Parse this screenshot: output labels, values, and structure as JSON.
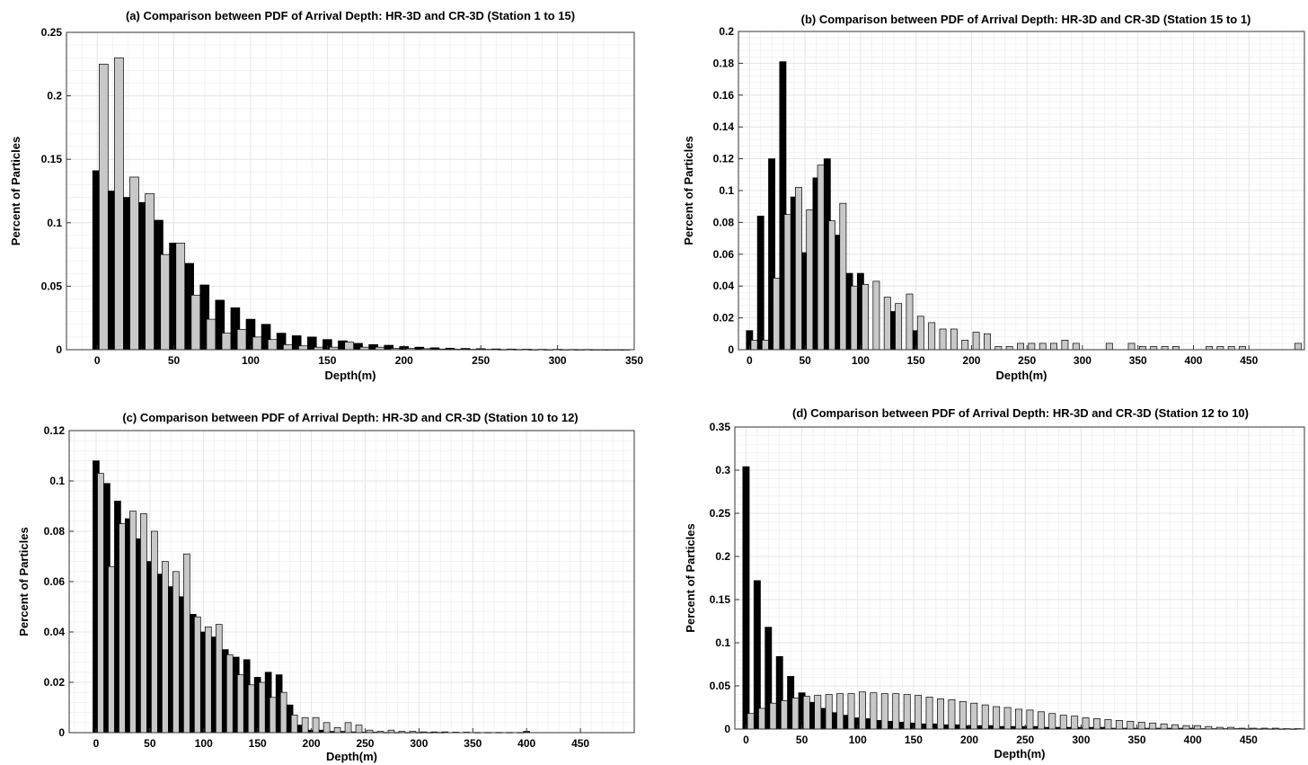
{
  "colors": {
    "hr": "#000000",
    "cr": "#c8c8c8",
    "grid": "#e6e6e6",
    "frame": "#333333"
  },
  "chart_data": [
    {
      "type": "bar",
      "title": "(a) Comparison between PDF of Arrival Depth: HR-3D and CR-3D (Station 1 to 15)",
      "xlabel": "Depth(m)",
      "ylabel": "Percent of Particles",
      "xlim": [
        -20,
        350
      ],
      "ylim": [
        0,
        0.25
      ],
      "xticks": [
        0,
        50,
        100,
        150,
        200,
        250,
        300,
        350
      ],
      "yticks": [
        0,
        0.05,
        0.1,
        0.15,
        0.2,
        0.25
      ],
      "xtick_labels": [
        "0",
        "50",
        "100",
        "150",
        "200",
        "250",
        "300",
        "350"
      ],
      "ytick_labels": [
        "0",
        "0.05",
        "0.1",
        "0.15",
        "0.2",
        "0.25"
      ],
      "grid": true,
      "bin_width": 10,
      "x": [
        0,
        10,
        20,
        30,
        40,
        50,
        60,
        70,
        80,
        90,
        100,
        110,
        120,
        130,
        140,
        150,
        160,
        170,
        180,
        190,
        200,
        210,
        220,
        230,
        240,
        250,
        260,
        270,
        280,
        290,
        300,
        310,
        320,
        330,
        340
      ],
      "series": [
        {
          "values": [
            0.141,
            0.125,
            0.12,
            0.116,
            0.102,
            0.084,
            0.068,
            0.051,
            0.039,
            0.033,
            0.024,
            0.02,
            0.013,
            0.011,
            0.01,
            0.008,
            0.007,
            0.005,
            0.004,
            0.0035,
            0.0025,
            0.002,
            0.0015,
            0.0012,
            0.001,
            0.0008,
            0.0006,
            0.0005,
            0.0004,
            0.0003,
            0.0003,
            0.0002,
            0.0002,
            0.0001,
            0.0001
          ]
        },
        {
          "values": [
            0.225,
            0.23,
            0.136,
            0.123,
            0.075,
            0.084,
            0.043,
            0.024,
            0.013,
            0.016,
            0.01,
            0.008,
            0.004,
            0.003,
            0.002,
            0.002,
            0.006,
            0.002,
            0.002,
            0.001,
            0.001,
            0.0008,
            0.0005,
            0.0004,
            0.0003,
            0.0003,
            0.0002,
            0.0002,
            0.0001,
            0.0001,
            0.0001,
            0.0001,
            0.0001,
            0.0001,
            0.0001
          ]
        }
      ]
    },
    {
      "type": "bar",
      "title": "(b) Comparison between PDF of Arrival Depth: HR-3D and CR-3D (Station 15 to 1)",
      "xlabel": "Depth(m)",
      "ylabel": "Percent of Particles",
      "xlim": [
        -10,
        500
      ],
      "ylim": [
        0,
        0.2
      ],
      "xticks": [
        0,
        50,
        100,
        150,
        200,
        250,
        300,
        350,
        400,
        450
      ],
      "yticks": [
        0,
        0.02,
        0.04,
        0.06,
        0.08,
        0.1,
        0.12,
        0.14,
        0.16,
        0.18,
        0.2
      ],
      "xtick_labels": [
        "0",
        "50",
        "100",
        "150",
        "200",
        "250",
        "300",
        "350",
        "400",
        "450"
      ],
      "ytick_labels": [
        "0",
        "0.02",
        "0.04",
        "0.06",
        "0.08",
        "0.1",
        "0.12",
        "0.14",
        "0.16",
        "0.18",
        "0.2"
      ],
      "grid": true,
      "bin_width": 10,
      "x": [
        0,
        10,
        20,
        30,
        40,
        50,
        60,
        70,
        80,
        90,
        100,
        110,
        120,
        130,
        140,
        150,
        160,
        170,
        180,
        190,
        200,
        210,
        220,
        230,
        240,
        250,
        260,
        270,
        280,
        290,
        300,
        310,
        320,
        330,
        340,
        350,
        360,
        370,
        380,
        390,
        400,
        410,
        420,
        430,
        440,
        450,
        460,
        470,
        480,
        490
      ],
      "series": [
        {
          "values": [
            0.012,
            0.084,
            0.12,
            0.181,
            0.096,
            0.061,
            0.108,
            0.12,
            0.072,
            0.048,
            0.048,
            0.0,
            0.0,
            0.024,
            0.0,
            0.012,
            0,
            0,
            0,
            0,
            0,
            0,
            0,
            0,
            0,
            0,
            0,
            0,
            0,
            0,
            0,
            0,
            0,
            0,
            0,
            0,
            0,
            0,
            0,
            0,
            0,
            0,
            0,
            0,
            0,
            0,
            0,
            0,
            0,
            0
          ]
        },
        {
          "values": [
            0.006,
            0.006,
            0.045,
            0.085,
            0.102,
            0.088,
            0.116,
            0.081,
            0.092,
            0.04,
            0.041,
            0.043,
            0.033,
            0.029,
            0.035,
            0.021,
            0.017,
            0.013,
            0.013,
            0.006,
            0.011,
            0.01,
            0.002,
            0.002,
            0.004,
            0.004,
            0.004,
            0.004,
            0.006,
            0.004,
            0,
            0,
            0.004,
            0,
            0.004,
            0.002,
            0.002,
            0.002,
            0.002,
            0,
            0,
            0.002,
            0.002,
            0.002,
            0.002,
            0,
            0,
            0,
            0,
            0.004
          ]
        }
      ]
    },
    {
      "type": "bar",
      "title": "(c) Comparison between PDF of Arrival Depth: HR-3D and CR-3D (Station 10 to 12)",
      "xlabel": "Depth(m)",
      "ylabel": "Percent of Particles",
      "xlim": [
        -25,
        500
      ],
      "ylim": [
        0,
        0.12
      ],
      "xticks": [
        0,
        50,
        100,
        150,
        200,
        250,
        300,
        350,
        400,
        450
      ],
      "yticks": [
        0,
        0.02,
        0.04,
        0.06,
        0.08,
        0.1,
        0.12
      ],
      "xtick_labels": [
        "0",
        "50",
        "100",
        "150",
        "200",
        "250",
        "300",
        "350",
        "400",
        "450"
      ],
      "ytick_labels": [
        "0",
        "0.02",
        "0.04",
        "0.06",
        "0.08",
        "0.1",
        "0.12"
      ],
      "grid": true,
      "bin_width": 10,
      "x": [
        0,
        10,
        20,
        30,
        40,
        50,
        60,
        70,
        80,
        90,
        100,
        110,
        120,
        130,
        140,
        150,
        160,
        170,
        180,
        190,
        200,
        210,
        220,
        230,
        240,
        250,
        260,
        270,
        280,
        290,
        300,
        310,
        320,
        330,
        340,
        350,
        360,
        370,
        380,
        390,
        400,
        410,
        420,
        430,
        440,
        450,
        460,
        470
      ],
      "series": [
        {
          "values": [
            0.108,
            0.099,
            0.092,
            0.085,
            0.077,
            0.068,
            0.063,
            0.058,
            0.054,
            0.047,
            0.04,
            0.038,
            0.033,
            0.03,
            0.029,
            0.022,
            0.024,
            0.023,
            0.011,
            0.003,
            0.001,
            0.001,
            0.0005,
            0.0005,
            0.0003,
            0.0002,
            0.0002,
            0.0001,
            0.0001,
            0.0001,
            0.0001,
            0.0001,
            0.0001,
            0,
            0,
            0,
            0,
            0,
            0,
            0,
            0.0005,
            0,
            0,
            0,
            0,
            0,
            0,
            0
          ]
        },
        {
          "values": [
            0.103,
            0.066,
            0.083,
            0.088,
            0.087,
            0.08,
            0.068,
            0.064,
            0.071,
            0.046,
            0.042,
            0.043,
            0.031,
            0.023,
            0.019,
            0.02,
            0.014,
            0.016,
            0.007,
            0.006,
            0.006,
            0.004,
            0.002,
            0.004,
            0.003,
            0.001,
            0.0005,
            0.001,
            0.0005,
            0.0005,
            0.0003,
            0.0003,
            0.0003,
            0.0002,
            0.0002,
            0.0001,
            0.0001,
            0.0001,
            0.0001,
            0.0001,
            0,
            0,
            0,
            0,
            0,
            0,
            0,
            0
          ]
        }
      ]
    },
    {
      "type": "bar",
      "title": "(d) Comparison between PDF of Arrival Depth: HR-3D and CR-3D (Station 12 to 10)",
      "xlabel": "Depth(m)",
      "ylabel": "Percent of Particles",
      "xlim": [
        -10,
        500
      ],
      "ylim": [
        0,
        0.35
      ],
      "xticks": [
        0,
        50,
        100,
        150,
        200,
        250,
        300,
        350,
        400,
        450
      ],
      "yticks": [
        0,
        0.05,
        0.1,
        0.15,
        0.2,
        0.25,
        0.3,
        0.35
      ],
      "xtick_labels": [
        "0",
        "50",
        "100",
        "150",
        "200",
        "250",
        "300",
        "350",
        "400",
        "450"
      ],
      "ytick_labels": [
        "0",
        "0.05",
        "0.1",
        "0.15",
        "0.2",
        "0.25",
        "0.3",
        "0.35"
      ],
      "grid": true,
      "bin_width": 10,
      "x": [
        0,
        10,
        20,
        30,
        40,
        50,
        60,
        70,
        80,
        90,
        100,
        110,
        120,
        130,
        140,
        150,
        160,
        170,
        180,
        190,
        200,
        210,
        220,
        230,
        240,
        250,
        260,
        270,
        280,
        290,
        300,
        310,
        320,
        330,
        340,
        350,
        360,
        370,
        380,
        390,
        400,
        410,
        420,
        430,
        440,
        450,
        460,
        470,
        480,
        490
      ],
      "series": [
        {
          "values": [
            0.304,
            0.172,
            0.118,
            0.084,
            0.061,
            0.042,
            0.031,
            0.024,
            0.019,
            0.016,
            0.013,
            0.012,
            0.01,
            0.009,
            0.008,
            0.007,
            0.006,
            0.006,
            0.005,
            0.005,
            0.004,
            0.004,
            0.004,
            0.003,
            0.003,
            0.003,
            0.003,
            0.002,
            0.002,
            0.002,
            0.002,
            0.002,
            0.002,
            0.001,
            0.001,
            0.001,
            0.001,
            0.001,
            0.001,
            0.001,
            0.001,
            0.0005,
            0.0005,
            0.0005,
            0.0005,
            0.0003,
            0.0003,
            0.0003,
            0.0002,
            0.0002
          ]
        },
        {
          "values": [
            0.018,
            0.024,
            0.03,
            0.033,
            0.036,
            0.038,
            0.039,
            0.04,
            0.041,
            0.041,
            0.043,
            0.042,
            0.041,
            0.041,
            0.04,
            0.039,
            0.037,
            0.035,
            0.034,
            0.032,
            0.03,
            0.028,
            0.026,
            0.025,
            0.023,
            0.022,
            0.02,
            0.018,
            0.016,
            0.015,
            0.013,
            0.012,
            0.011,
            0.01,
            0.009,
            0.008,
            0.007,
            0.006,
            0.005,
            0.004,
            0.004,
            0.003,
            0.002,
            0.002,
            0.001,
            0.001,
            0.001,
            0.001,
            0.0005,
            0.0005
          ]
        }
      ]
    }
  ]
}
